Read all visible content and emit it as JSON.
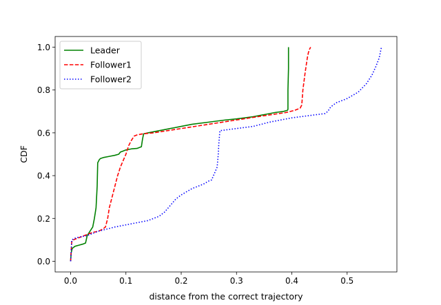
{
  "chart_data": {
    "type": "line",
    "xlabel": "distance from the correct trajectory",
    "ylabel": "CDF",
    "xlim": [
      -0.028,
      0.59
    ],
    "ylim": [
      -0.05,
      1.05
    ],
    "xticks": [
      0.0,
      0.1,
      0.2,
      0.3,
      0.4,
      0.5
    ],
    "xtick_labels": [
      "0.0",
      "0.1",
      "0.2",
      "0.3",
      "0.4",
      "0.5"
    ],
    "yticks": [
      0.0,
      0.2,
      0.4,
      0.6,
      0.8,
      1.0
    ],
    "ytick_labels": [
      "0.0",
      "0.2",
      "0.4",
      "0.6",
      "0.8",
      "1.0"
    ],
    "grid": false,
    "legend_position": "top-left",
    "series": [
      {
        "name": "Leader",
        "color": "#008000",
        "dash": "solid",
        "x": [
          0.0,
          0.001,
          0.003,
          0.008,
          0.015,
          0.022,
          0.027,
          0.03,
          0.035,
          0.04,
          0.043,
          0.046,
          0.048,
          0.049,
          0.05,
          0.052,
          0.054,
          0.06,
          0.07,
          0.08,
          0.087,
          0.09,
          0.095,
          0.1,
          0.11,
          0.12,
          0.128,
          0.13,
          0.132,
          0.14,
          0.16,
          0.18,
          0.2,
          0.22,
          0.25,
          0.28,
          0.3,
          0.33,
          0.35,
          0.37,
          0.385,
          0.392,
          0.393,
          0.393,
          0.394,
          0.394
        ],
        "y": [
          0.0,
          0.04,
          0.06,
          0.07,
          0.075,
          0.08,
          0.085,
          0.12,
          0.14,
          0.16,
          0.2,
          0.25,
          0.35,
          0.46,
          0.465,
          0.475,
          0.48,
          0.485,
          0.49,
          0.495,
          0.5,
          0.51,
          0.515,
          0.52,
          0.525,
          0.527,
          0.535,
          0.57,
          0.595,
          0.6,
          0.61,
          0.62,
          0.63,
          0.64,
          0.65,
          0.66,
          0.665,
          0.675,
          0.685,
          0.695,
          0.7,
          0.705,
          0.71,
          0.8,
          0.9,
          1.0
        ]
      },
      {
        "name": "Follower1",
        "color": "#ff0000",
        "dash": "dashed",
        "x": [
          0.0,
          0.001,
          0.002,
          0.005,
          0.01,
          0.02,
          0.03,
          0.04,
          0.05,
          0.058,
          0.063,
          0.067,
          0.07,
          0.075,
          0.08,
          0.085,
          0.09,
          0.095,
          0.1,
          0.105,
          0.11,
          0.115,
          0.12,
          0.13,
          0.15,
          0.2,
          0.25,
          0.3,
          0.35,
          0.39,
          0.405,
          0.415,
          0.418,
          0.42,
          0.424,
          0.428,
          0.43,
          0.432,
          0.434
        ],
        "y": [
          0.0,
          0.05,
          0.09,
          0.1,
          0.105,
          0.115,
          0.125,
          0.135,
          0.14,
          0.15,
          0.16,
          0.2,
          0.25,
          0.3,
          0.35,
          0.4,
          0.44,
          0.47,
          0.5,
          0.54,
          0.565,
          0.585,
          0.59,
          0.595,
          0.6,
          0.62,
          0.64,
          0.66,
          0.68,
          0.695,
          0.705,
          0.715,
          0.73,
          0.8,
          0.88,
          0.95,
          0.975,
          0.99,
          1.0
        ]
      },
      {
        "name": "Follower2",
        "color": "#0000ff",
        "dash": "dotted",
        "x": [
          0.0,
          0.001,
          0.002,
          0.01,
          0.03,
          0.05,
          0.08,
          0.1,
          0.12,
          0.14,
          0.15,
          0.16,
          0.17,
          0.18,
          0.19,
          0.2,
          0.22,
          0.24,
          0.25,
          0.255,
          0.26,
          0.265,
          0.266,
          0.267,
          0.268,
          0.27,
          0.3,
          0.33,
          0.36,
          0.4,
          0.43,
          0.46,
          0.465,
          0.47,
          0.48,
          0.5,
          0.52,
          0.535,
          0.545,
          0.552,
          0.558,
          0.562
        ],
        "y": [
          0.0,
          0.04,
          0.1,
          0.11,
          0.12,
          0.14,
          0.16,
          0.17,
          0.18,
          0.19,
          0.2,
          0.21,
          0.23,
          0.26,
          0.29,
          0.31,
          0.34,
          0.36,
          0.375,
          0.38,
          0.41,
          0.44,
          0.47,
          0.5,
          0.55,
          0.61,
          0.62,
          0.63,
          0.65,
          0.67,
          0.68,
          0.69,
          0.7,
          0.72,
          0.74,
          0.76,
          0.79,
          0.83,
          0.87,
          0.91,
          0.95,
          1.0
        ]
      }
    ]
  }
}
